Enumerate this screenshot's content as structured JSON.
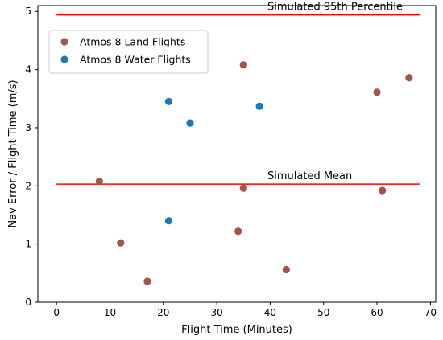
{
  "chart_data": {
    "type": "scatter",
    "xlabel": "Flight Time (Minutes)",
    "ylabel": "Nav Error / Flight Time  (m/s)",
    "xlim": [
      -3.5,
      71
    ],
    "ylim": [
      0,
      5.1
    ],
    "x_ticks": [
      0,
      10,
      20,
      30,
      40,
      50,
      60,
      70
    ],
    "y_ticks": [
      0,
      1,
      2,
      3,
      4,
      5
    ],
    "grid": false,
    "legend_position": "top-left",
    "series": [
      {
        "name": "Atmos 8 Land Flights",
        "color": "#a0564a",
        "points": [
          {
            "x": 8,
            "y": 2.08
          },
          {
            "x": 12,
            "y": 1.02
          },
          {
            "x": 17,
            "y": 0.36
          },
          {
            "x": 34,
            "y": 1.22
          },
          {
            "x": 35,
            "y": 4.08
          },
          {
            "x": 35,
            "y": 1.96
          },
          {
            "x": 43,
            "y": 0.56
          },
          {
            "x": 60,
            "y": 3.61
          },
          {
            "x": 61,
            "y": 1.92
          },
          {
            "x": 66,
            "y": 3.86
          }
        ]
      },
      {
        "name": "Atmos 8 Water Flights",
        "color": "#1f77b4",
        "points": [
          {
            "x": 21,
            "y": 3.45
          },
          {
            "x": 21,
            "y": 1.4
          },
          {
            "x": 25,
            "y": 3.08
          },
          {
            "x": 38,
            "y": 3.37
          }
        ]
      }
    ],
    "reference_lines": [
      {
        "name": "Simulated 95th Percentile",
        "y": 4.94,
        "x_start": 0,
        "x_end": 68,
        "color": "#ff0000"
      },
      {
        "name": "Simulated Mean",
        "y": 2.03,
        "x_start": 0,
        "x_end": 68,
        "color": "#ff0000"
      }
    ]
  }
}
